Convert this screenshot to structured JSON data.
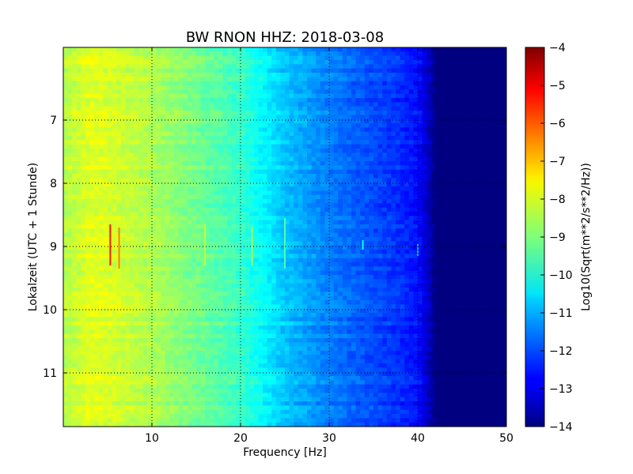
{
  "chart_data": {
    "type": "heatmap",
    "title": "BW RNON HHZ: 2018-03-08",
    "xlabel": "Frequency [Hz]",
    "ylabel": "Lokalzeit (UTC + 1 Stunde)",
    "xlim": [
      0,
      50
    ],
    "ylim": [
      5.85,
      11.85
    ],
    "x_ticks": [
      10,
      20,
      30,
      40,
      50
    ],
    "x_tick_labels": [
      "10",
      "20",
      "30",
      "40",
      "50"
    ],
    "y_ticks": [
      7,
      8,
      9,
      10,
      11
    ],
    "y_tick_labels": [
      "7",
      "8",
      "9",
      "10",
      "11"
    ],
    "y_inverted": true,
    "grid": true,
    "colormap": "jet",
    "colorbar": {
      "label": "Log10(Sqrt(m**2/s**2/Hz))",
      "range": [
        -14,
        -4
      ],
      "ticks": [
        -14,
        -13,
        -12,
        -11,
        -10,
        -9,
        -8,
        -7,
        -6,
        -5,
        -4
      ],
      "tick_labels": [
        "−14",
        "−13",
        "−12",
        "−11",
        "−10",
        "−9",
        "−8",
        "−7",
        "−6",
        "−5",
        "−4"
      ]
    },
    "spectrum_profile": {
      "frequency_hz": [
        0.5,
        3,
        5,
        10,
        15,
        20,
        25,
        30,
        35,
        38,
        40,
        41,
        42,
        45,
        50
      ],
      "level": [
        -8.4,
        -8.0,
        -8.1,
        -8.5,
        -9.1,
        -9.7,
        -10.8,
        -11.5,
        -12.0,
        -12.3,
        -12.6,
        -13.2,
        -14.0,
        -14.0,
        -14.0
      ]
    },
    "notable_features": [
      {
        "frequency_hz": 5.3,
        "time_start": 8.65,
        "time_end": 9.3,
        "level": -5.5
      },
      {
        "frequency_hz": 6.3,
        "time_start": 8.7,
        "time_end": 9.35,
        "level": -6.5
      },
      {
        "frequency_hz": 16.0,
        "time_start": 8.65,
        "time_end": 9.3,
        "level": -8.3
      },
      {
        "frequency_hz": 21.3,
        "time_start": 8.7,
        "time_end": 9.3,
        "level": -8.6
      },
      {
        "frequency_hz": 25.0,
        "time_start": 8.55,
        "time_end": 9.35,
        "level": -9.5
      },
      {
        "frequency_hz": 33.8,
        "time_start": 8.9,
        "time_end": 9.05,
        "level": -10.2
      },
      {
        "frequency_hz": 40.0,
        "time_start": 8.95,
        "time_end": 9.15,
        "level": -11.0
      }
    ]
  }
}
